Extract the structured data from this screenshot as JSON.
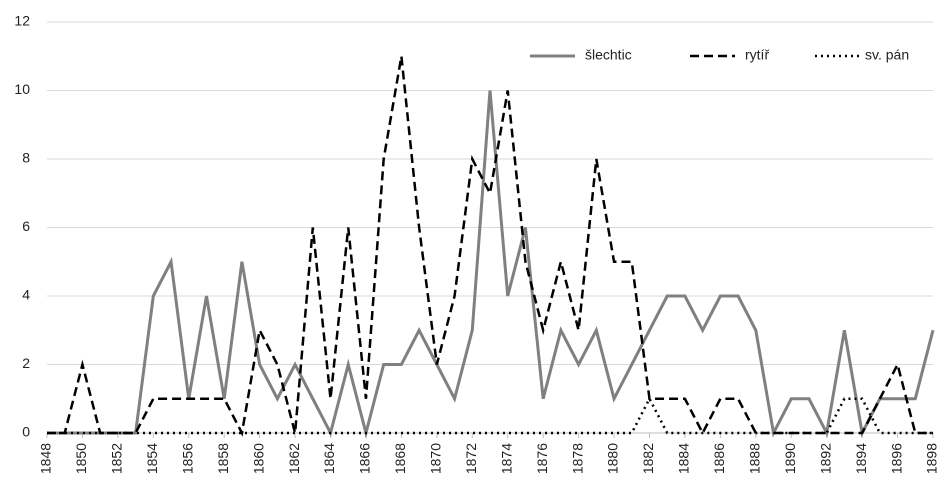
{
  "chart_data": {
    "type": "line",
    "x": [
      1848,
      1849,
      1850,
      1851,
      1852,
      1853,
      1854,
      1855,
      1856,
      1857,
      1858,
      1859,
      1860,
      1861,
      1862,
      1863,
      1864,
      1865,
      1866,
      1867,
      1868,
      1869,
      1870,
      1871,
      1872,
      1873,
      1874,
      1875,
      1876,
      1877,
      1878,
      1879,
      1880,
      1881,
      1882,
      1883,
      1884,
      1885,
      1886,
      1887,
      1888,
      1889,
      1890,
      1891,
      1892,
      1893,
      1894,
      1895,
      1896,
      1897,
      1898
    ],
    "series": [
      {
        "name": "šlechtic",
        "color": "#808080",
        "style": "solid",
        "values": [
          0,
          0,
          0,
          0,
          0,
          0,
          4,
          5,
          1,
          4,
          1,
          5,
          2,
          1,
          2,
          1,
          0,
          2,
          0,
          2,
          2,
          3,
          2,
          1,
          3,
          10,
          4,
          6,
          1,
          3,
          2,
          3,
          1,
          2,
          3,
          4,
          4,
          3,
          4,
          4,
          3,
          0,
          1,
          1,
          0,
          3,
          0,
          1,
          1,
          1,
          3
        ]
      },
      {
        "name": "rytíř",
        "color": "#000000",
        "style": "dashed",
        "values": [
          0,
          0,
          2,
          0,
          0,
          0,
          1,
          1,
          1,
          1,
          1,
          0,
          3,
          2,
          0,
          6,
          1,
          6,
          1,
          8,
          11,
          6,
          2,
          4,
          8,
          7,
          10,
          5,
          3,
          5,
          3,
          8,
          5,
          5,
          1,
          1,
          1,
          0,
          1,
          1,
          0,
          0,
          0,
          0,
          0,
          0,
          0,
          1,
          2,
          0,
          0
        ]
      },
      {
        "name": "sv. pán",
        "color": "#000000",
        "style": "dotted",
        "values": [
          0,
          0,
          0,
          0,
          0,
          0,
          0,
          0,
          0,
          0,
          0,
          0,
          0,
          0,
          0,
          0,
          0,
          0,
          0,
          0,
          0,
          0,
          0,
          0,
          0,
          0,
          0,
          0,
          0,
          0,
          0,
          0,
          0,
          0,
          1,
          0,
          0,
          0,
          0,
          0,
          0,
          0,
          0,
          0,
          0,
          1,
          1,
          0,
          0,
          0,
          0
        ]
      }
    ],
    "xlim": [
      1848,
      1898
    ],
    "xticks": [
      1848,
      1850,
      1852,
      1854,
      1856,
      1858,
      1860,
      1862,
      1864,
      1866,
      1868,
      1870,
      1872,
      1874,
      1876,
      1878,
      1880,
      1882,
      1884,
      1886,
      1888,
      1890,
      1892,
      1894,
      1896,
      1898
    ],
    "ylim": [
      0,
      12
    ],
    "yticks": [
      0,
      2,
      4,
      6,
      8,
      10,
      12
    ],
    "grid": true,
    "legend": "top-right"
  }
}
